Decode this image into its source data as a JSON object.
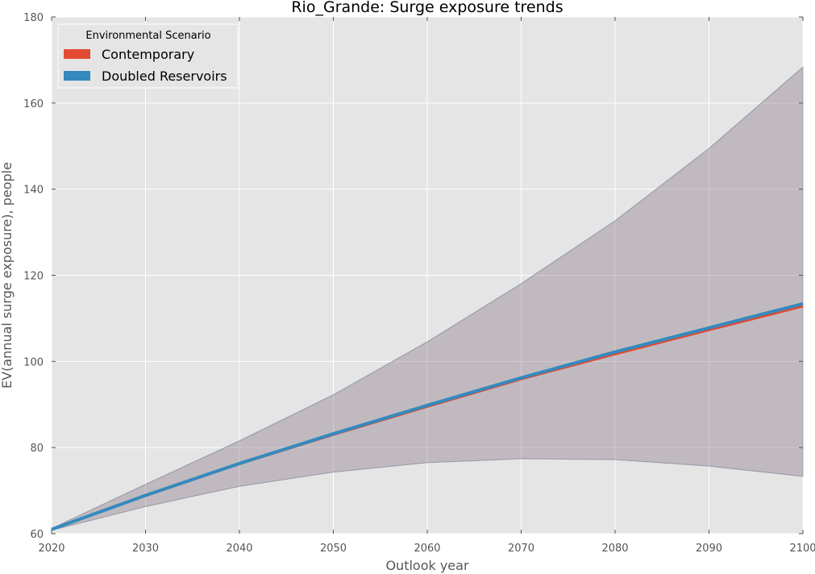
{
  "chart_data": {
    "type": "area",
    "title": "Rio_Grande: Surge exposure trends",
    "xlabel": "Outlook year",
    "ylabel": "EV(annual surge exposure), people",
    "xlim": [
      2020,
      2100
    ],
    "ylim": [
      60,
      180
    ],
    "x_ticks": [
      2020,
      2030,
      2040,
      2050,
      2060,
      2070,
      2080,
      2090,
      2100
    ],
    "y_ticks": [
      60,
      80,
      100,
      120,
      140,
      160,
      180
    ],
    "grid": true,
    "legend": {
      "title": "Environmental Scenario",
      "placement": "top-left"
    },
    "x": [
      2020,
      2030,
      2040,
      2050,
      2060,
      2070,
      2080,
      2090,
      2100
    ],
    "series": [
      {
        "name": "Contemporary",
        "color": "#e24a33",
        "values": [
          61.0,
          68.8,
          76.2,
          83.0,
          89.5,
          95.9,
          101.7,
          107.3,
          112.8
        ],
        "lower": [
          60.8,
          66.3,
          71.0,
          74.3,
          76.5,
          77.4,
          77.2,
          75.7,
          73.3
        ],
        "upper": [
          61.2,
          71.4,
          81.5,
          92.2,
          104.5,
          118.0,
          132.6,
          149.4,
          168.3
        ]
      },
      {
        "name": "Doubled Reservoirs",
        "color": "#348abd",
        "values": [
          61.0,
          68.9,
          76.3,
          83.2,
          89.8,
          96.2,
          102.2,
          107.8,
          113.4
        ],
        "lower": [
          60.8,
          66.3,
          71.0,
          74.3,
          76.5,
          77.4,
          77.2,
          75.7,
          73.3
        ],
        "upper": [
          61.2,
          71.5,
          81.6,
          92.3,
          104.6,
          118.1,
          132.7,
          149.5,
          168.4
        ]
      }
    ]
  }
}
